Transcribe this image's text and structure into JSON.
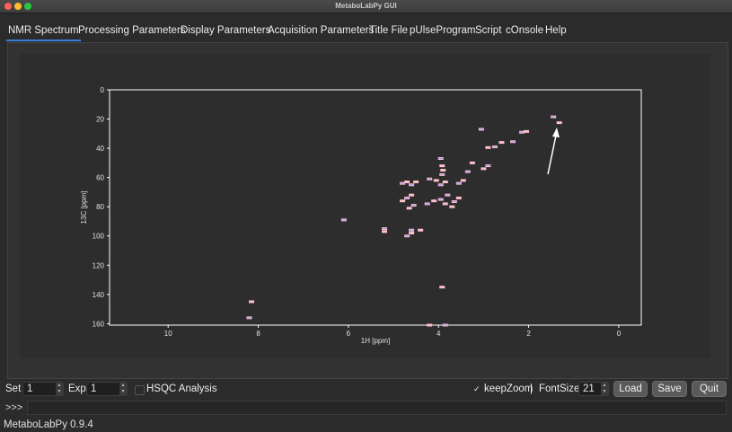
{
  "window": {
    "title": "MetaboLabPy GUI"
  },
  "tabs": [
    {
      "label": "NMR Spectrum",
      "active": true
    },
    {
      "label": "Processing Parameters"
    },
    {
      "label": "Display Parameters"
    },
    {
      "label": "Acquisition Parameters"
    },
    {
      "label": "Title File"
    },
    {
      "label": "pUlseProgram"
    },
    {
      "label": "Script"
    },
    {
      "label": "cOnsole"
    },
    {
      "label": "Help"
    }
  ],
  "plot": {
    "xlabel": "1H [ppm]",
    "ylabel": "13C [ppm]",
    "xticks": [
      "10",
      "8",
      "6",
      "4",
      "2",
      "0"
    ],
    "yticks": [
      "0",
      "20",
      "40",
      "60",
      "80",
      "100",
      "120",
      "140",
      "160"
    ]
  },
  "chart_data": {
    "type": "scatter",
    "title": "",
    "xlabel": "1H [ppm]",
    "ylabel": "13C [ppm]",
    "xlim": [
      11.3,
      -0.5
    ],
    "ylim": [
      0,
      161
    ],
    "x_inverted": true,
    "y_inverted": true,
    "colors": {
      "positive": "#ffc0cb",
      "negative": "#9c9cff",
      "axes": "#ffffff"
    },
    "series": [
      {
        "values": [
          [
            1.45,
            18.5
          ],
          [
            1.32,
            22.5
          ],
          [
            2.15,
            29
          ],
          [
            2.05,
            28.5
          ],
          [
            2.35,
            35.5
          ],
          [
            2.6,
            36
          ],
          [
            2.75,
            39
          ],
          [
            2.9,
            39.5
          ],
          [
            2.9,
            52
          ],
          [
            3.0,
            54
          ],
          [
            3.05,
            27
          ],
          [
            3.25,
            50
          ],
          [
            3.35,
            56
          ],
          [
            3.45,
            62
          ],
          [
            3.55,
            64
          ],
          [
            3.55,
            74
          ],
          [
            3.65,
            76.5
          ],
          [
            3.7,
            80
          ],
          [
            3.8,
            72
          ],
          [
            3.85,
            78
          ],
          [
            3.95,
            75
          ],
          [
            4.1,
            76
          ],
          [
            4.25,
            78
          ],
          [
            3.85,
            63
          ],
          [
            3.95,
            65
          ],
          [
            4.05,
            62
          ],
          [
            4.2,
            61
          ],
          [
            3.9,
            55
          ],
          [
            3.92,
            58
          ],
          [
            3.92,
            52
          ],
          [
            3.95,
            47
          ],
          [
            4.5,
            63
          ],
          [
            4.6,
            65
          ],
          [
            4.7,
            63
          ],
          [
            4.8,
            64
          ],
          [
            4.6,
            72
          ],
          [
            4.7,
            74
          ],
          [
            4.8,
            76
          ],
          [
            4.55,
            79
          ],
          [
            4.65,
            81
          ],
          [
            4.6,
            96
          ],
          [
            4.6,
            98
          ],
          [
            4.7,
            100
          ],
          [
            4.4,
            96
          ],
          [
            5.2,
            95
          ],
          [
            5.2,
            97
          ],
          [
            6.1,
            89
          ],
          [
            8.15,
            145
          ],
          [
            8.2,
            156
          ],
          [
            4.2,
            161
          ],
          [
            3.85,
            161
          ],
          [
            3.92,
            135
          ]
        ]
      }
    ]
  },
  "bottom": {
    "set_label": "Set",
    "set_value": "1",
    "exp_label": "Exp",
    "exp_value": "1",
    "hsqc_label": "HSQC Analysis",
    "keepzoom_label": "keepZoom",
    "sep": "|",
    "fontsize_label": "FontSize",
    "fontsize_value": "21",
    "load_label": "Load",
    "save_label": "Save",
    "quit_label": "Quit"
  },
  "console": {
    "prompt": ">>>"
  },
  "status": {
    "text": "MetaboLabPy 0.9.4"
  }
}
